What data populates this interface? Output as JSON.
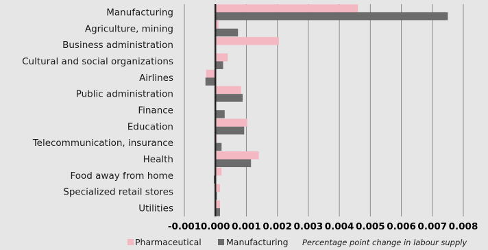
{
  "chart_data": {
    "type": "bar",
    "orientation": "horizontal",
    "categories": [
      "Manufacturing",
      "Agriculture, mining",
      "Business administration",
      "Cultural and social organizations",
      "Airlines",
      "Public administration",
      "Finance",
      "Education",
      "Telecommunication, insurance",
      "Health",
      "Food away from home",
      "Specialized retail stores",
      "Utilities"
    ],
    "series": [
      {
        "name": "Pharmaceutical",
        "color": "#f4b8c2",
        "values": [
          0.0046,
          0.0001,
          0.00205,
          0.0004,
          -0.0003,
          0.00083,
          0.0,
          0.00103,
          5e-05,
          0.0014,
          0.0002,
          0.00015,
          0.00015
        ]
      },
      {
        "name": "Manufacturing",
        "color": "#6b6b6b",
        "values": [
          0.0075,
          0.00073,
          0.0,
          0.00025,
          -0.00032,
          0.00088,
          0.0003,
          0.00093,
          0.0002,
          0.00115,
          -5e-05,
          5e-05,
          0.00015
        ]
      }
    ],
    "xlim": [
      -0.001,
      0.008
    ],
    "xticks": [
      "-0.001",
      "0.000",
      "0.001",
      "0.002",
      "0.003",
      "0.004",
      "0.005",
      "0.006",
      "0.007",
      "0.008"
    ],
    "xlabel": "Percentage point change in labour supply",
    "grid": true,
    "legend_position": "bottom"
  }
}
